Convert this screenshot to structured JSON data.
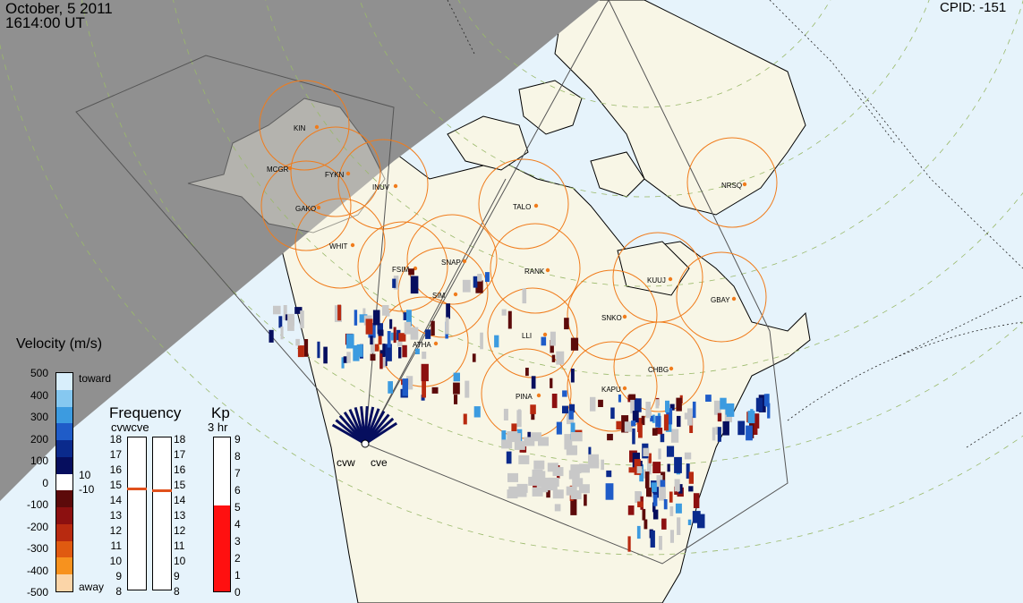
{
  "header": {
    "date": "October, 5 2011",
    "time": "1614:00 UT",
    "cpid": "CPID:  -151"
  },
  "stations": [
    "KIN",
    "MCGR",
    "FYKN",
    "GAKO",
    "INUV",
    "WHIT",
    "FSIM",
    "SNAP",
    "RANK",
    "TALO",
    "NRSQ",
    "KUUJ",
    "GBAY",
    "SNKO",
    "CHBG",
    "KAPU",
    "ATHA",
    "PINA",
    "LLI",
    "SIM"
  ],
  "radar_labels": {
    "west": "cvw",
    "east": "cve"
  },
  "velocity_scale": {
    "title": "Velocity (m/s)",
    "ticks": [
      "500",
      "400",
      "300",
      "200",
      "100",
      "0",
      "-100",
      "-200",
      "-300",
      "-400",
      "-500"
    ],
    "toward_label": "toward",
    "away_label": "away",
    "threshold_pos": "10",
    "threshold_neg": "-10",
    "colors": [
      "#d8eefb",
      "#86c8f0",
      "#3c9be0",
      "#1f5cc8",
      "#0a2a8c",
      "#060e5e",
      "#ffffff",
      "#5c0a0a",
      "#8c1010",
      "#b82a10",
      "#e05a10",
      "#f7921e",
      "#fbd5a8"
    ]
  },
  "frequency": {
    "title": "Frequency",
    "subtitle": "cvwcve",
    "ticks": [
      "18",
      "17",
      "16",
      "15",
      "14",
      "13",
      "12",
      "11",
      "10",
      "9",
      "8"
    ],
    "cvw_mhz": 14.8,
    "cve_mhz": 14.7
  },
  "kp": {
    "title": "Kp",
    "subtitle": "3 hr",
    "ticks": [
      "9",
      "8",
      "7",
      "6",
      "5",
      "4",
      "3",
      "2",
      "1",
      "0"
    ],
    "value": 5
  }
}
